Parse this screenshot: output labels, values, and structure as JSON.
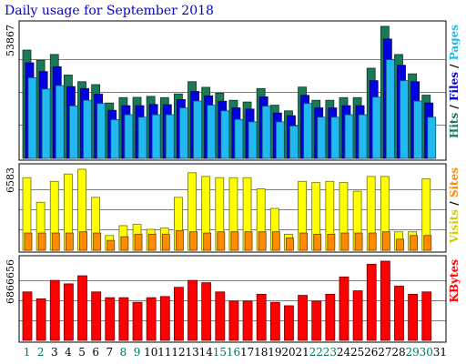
{
  "title": "Daily usage for September 2018",
  "colors": {
    "hits": "#1a7a55",
    "files": "#0000e0",
    "pages": "#22b8f0",
    "visits": "#ffff00",
    "sites": "#ff8c00",
    "kbytes": "#ff0000",
    "axis_label_default": "#000080",
    "axis_label_weekend": "#007a55"
  },
  "chart_data": [
    {
      "type": "bar",
      "title": "",
      "y_max_label": "53867",
      "ylim": [
        0,
        53867
      ],
      "right_labels": [
        {
          "text": "Hits",
          "color": "#1a7a55"
        },
        {
          "text": "Files",
          "color": "#0000e0"
        },
        {
          "text": "Pages",
          "color": "#22b8f0"
        }
      ],
      "separator": "/",
      "categories": [
        "1",
        "2",
        "3",
        "4",
        "5",
        "6",
        "7",
        "8",
        "9",
        "10",
        "11",
        "12",
        "13",
        "14",
        "15",
        "16",
        "17",
        "18",
        "19",
        "20",
        "21",
        "22",
        "23",
        "24",
        "25",
        "26",
        "27",
        "28",
        "29",
        "30",
        "31"
      ],
      "series": [
        {
          "name": "Hits",
          "values": [
            44200,
            40000,
            42400,
            34000,
            31300,
            30100,
            22600,
            24800,
            24900,
            25300,
            24800,
            26300,
            31300,
            29000,
            26600,
            23700,
            23000,
            28500,
            21700,
            19400,
            29100,
            23700,
            23700,
            24800,
            24800,
            36800,
            53900,
            42400,
            34500,
            25800,
            0
          ]
        },
        {
          "name": "Files",
          "values": [
            39000,
            35400,
            37400,
            29300,
            28500,
            26200,
            19600,
            21500,
            21500,
            22000,
            21900,
            24000,
            27300,
            25500,
            23300,
            20600,
            20100,
            25100,
            18500,
            17400,
            25700,
            20600,
            20600,
            21500,
            21500,
            31700,
            48700,
            38000,
            31300,
            22600,
            0
          ]
        },
        {
          "name": "Pages",
          "values": [
            32900,
            28300,
            29700,
            21400,
            23700,
            22400,
            15800,
            17800,
            16800,
            17800,
            17800,
            20600,
            23400,
            21700,
            19400,
            15900,
            14900,
            21300,
            14900,
            13200,
            22400,
            16800,
            16800,
            17800,
            17800,
            25000,
            40300,
            31700,
            23400,
            16800,
            0
          ]
        }
      ]
    },
    {
      "type": "bar",
      "title": "",
      "y_max_label": "6583",
      "ylim": [
        0,
        6583
      ],
      "right_labels": [
        {
          "text": "Visits",
          "color": "#cccc00"
        },
        {
          "text": "Sites",
          "color": "#ff8c00"
        }
      ],
      "separator": "/",
      "categories": [
        "1",
        "2",
        "3",
        "4",
        "5",
        "6",
        "7",
        "8",
        "9",
        "10",
        "11",
        "12",
        "13",
        "14",
        "15",
        "16",
        "17",
        "18",
        "19",
        "20",
        "21",
        "22",
        "23",
        "24",
        "25",
        "26",
        "27",
        "28",
        "29",
        "30",
        "31"
      ],
      "series": [
        {
          "name": "Visits",
          "values": [
            5900,
            3900,
            5600,
            6200,
            6583,
            4300,
            1200,
            2000,
            2100,
            1700,
            1800,
            4300,
            6300,
            6000,
            5900,
            5900,
            5900,
            5000,
            3400,
            1300,
            5600,
            5500,
            5600,
            5500,
            4800,
            6000,
            6000,
            1500,
            1500,
            5800,
            0
          ]
        },
        {
          "name": "Sites",
          "values": [
            1400,
            1400,
            1400,
            1400,
            1500,
            1400,
            800,
            1100,
            1300,
            1300,
            1300,
            1600,
            1500,
            1400,
            1500,
            1500,
            1500,
            1500,
            1500,
            1000,
            1400,
            1300,
            1300,
            1400,
            1400,
            1400,
            1500,
            900,
            1200,
            1200,
            0
          ]
        }
      ]
    },
    {
      "type": "bar",
      "title": "",
      "y_max_label": "6866656",
      "ylim": [
        0,
        6866656
      ],
      "right_labels": [
        {
          "text": "KBytes",
          "color": "#ff0000"
        }
      ],
      "separator": "",
      "categories": [
        "1",
        "2",
        "3",
        "4",
        "5",
        "6",
        "7",
        "8",
        "9",
        "10",
        "11",
        "12",
        "13",
        "14",
        "15",
        "16",
        "17",
        "18",
        "19",
        "20",
        "21",
        "22",
        "23",
        "24",
        "25",
        "26",
        "27",
        "28",
        "29",
        "30",
        "31"
      ],
      "series": [
        {
          "name": "KBytes",
          "values": [
            4200000,
            3600000,
            5200000,
            4900000,
            5600000,
            4200000,
            3700000,
            3700000,
            3300000,
            3700000,
            3800000,
            4600000,
            5200000,
            5000000,
            4200000,
            3400000,
            3400000,
            4000000,
            3300000,
            3000000,
            3900000,
            3400000,
            4000000,
            5500000,
            4300000,
            6600000,
            6866656,
            4700000,
            4000000,
            4200000,
            0
          ]
        }
      ]
    }
  ],
  "x_axis": {
    "labels": [
      "1",
      "2",
      "3",
      "4",
      "5",
      "6",
      "7",
      "8",
      "9",
      "10",
      "11",
      "12",
      "13",
      "14",
      "15",
      "16",
      "17",
      "18",
      "19",
      "20",
      "21",
      "22",
      "23",
      "24",
      "25",
      "26",
      "27",
      "28",
      "29",
      "30",
      "31"
    ],
    "weekend_days": [
      "1",
      "2",
      "8",
      "9",
      "15",
      "16",
      "22",
      "23",
      "29",
      "30"
    ]
  }
}
